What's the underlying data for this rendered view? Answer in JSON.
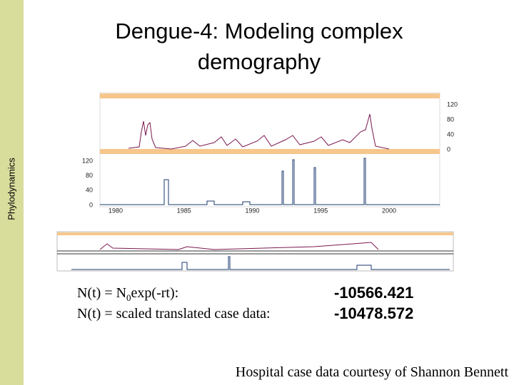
{
  "sidebar": {
    "label": "Phylodynamics"
  },
  "header": {
    "title_lines": [
      "Dengue-4: Modeling complex",
      "demography"
    ]
  },
  "figure": {
    "top_panel": {
      "ticks": [
        120,
        80,
        40,
        0
      ]
    },
    "bottom_panel": {
      "ticks": [
        120,
        80,
        40,
        0
      ],
      "x_ticks": [
        1980,
        1985,
        1990,
        1995,
        2000
      ]
    }
  },
  "results": [
    {
      "label_parts": [
        "N(t) = N",
        "0",
        "exp(-rt):"
      ],
      "value": "-10566.421"
    },
    {
      "label_parts": [
        "N(t) = scaled translated case data:"
      ],
      "value": "-10478.572"
    }
  ],
  "footer": {
    "credit": "Hospital case data courtesy of Shannon Bennett"
  }
}
